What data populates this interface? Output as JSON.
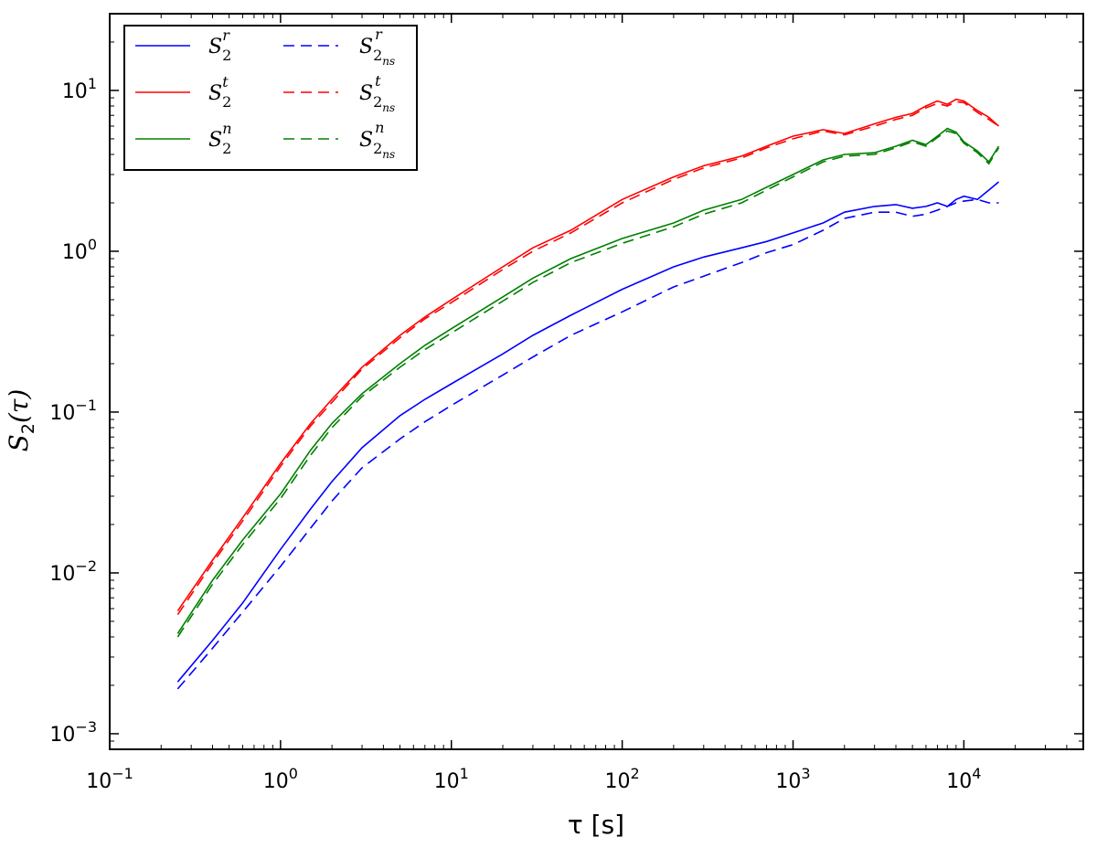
{
  "chart_data": {
    "type": "line",
    "xlabel": "τ [s]",
    "ylabel": "S2(τ)",
    "xscale": "log",
    "yscale": "log",
    "xlim": [
      0.1,
      50000
    ],
    "ylim": [
      0.0008,
      30
    ],
    "grid": false,
    "legend_placement": "top-left",
    "x_ticks": [
      {
        "value": 0.1,
        "base": "10",
        "exp": "−1"
      },
      {
        "value": 1,
        "base": "10",
        "exp": "0"
      },
      {
        "value": 10,
        "base": "10",
        "exp": "1"
      },
      {
        "value": 100,
        "base": "10",
        "exp": "2"
      },
      {
        "value": 1000,
        "base": "10",
        "exp": "3"
      },
      {
        "value": 10000,
        "base": "10",
        "exp": "4"
      }
    ],
    "y_ticks": [
      {
        "value": 0.001,
        "base": "10",
        "exp": "−3"
      },
      {
        "value": 0.01,
        "base": "10",
        "exp": "−2"
      },
      {
        "value": 0.1,
        "base": "10",
        "exp": "−1"
      },
      {
        "value": 1,
        "base": "10",
        "exp": "0"
      },
      {
        "value": 10,
        "base": "10",
        "exp": "1"
      }
    ],
    "x": [
      0.25,
      0.4,
      0.6,
      1,
      1.5,
      2,
      3,
      5,
      7,
      10,
      20,
      30,
      50,
      100,
      200,
      300,
      500,
      700,
      1000,
      1500,
      2000,
      3000,
      4000,
      5000,
      6000,
      7000,
      8000,
      9000,
      10000,
      12000,
      14000,
      16000
    ],
    "series": [
      {
        "name": "S2r",
        "sym": "S",
        "sub": "2",
        "sup": "r",
        "color": "#0000ff",
        "dash": false,
        "values": [
          0.0021,
          0.0038,
          0.0065,
          0.014,
          0.025,
          0.037,
          0.06,
          0.095,
          0.12,
          0.15,
          0.23,
          0.3,
          0.4,
          0.58,
          0.8,
          0.92,
          1.05,
          1.15,
          1.3,
          1.5,
          1.75,
          1.9,
          1.95,
          1.85,
          1.9,
          2.0,
          1.9,
          2.1,
          2.2,
          2.1,
          2.4,
          2.7
        ]
      },
      {
        "name": "S2t",
        "sym": "S",
        "sub": "2",
        "sup": "t",
        "color": "#ff0000",
        "dash": false,
        "values": [
          0.0058,
          0.012,
          0.022,
          0.048,
          0.085,
          0.12,
          0.19,
          0.3,
          0.39,
          0.5,
          0.8,
          1.05,
          1.35,
          2.1,
          2.9,
          3.4,
          3.9,
          4.5,
          5.2,
          5.7,
          5.4,
          6.2,
          6.8,
          7.2,
          8.0,
          8.6,
          8.2,
          8.8,
          8.6,
          7.5,
          6.8,
          6.0
        ]
      },
      {
        "name": "S2n",
        "sym": "S",
        "sub": "2",
        "sup": "n",
        "color": "#008000",
        "dash": false,
        "values": [
          0.0042,
          0.009,
          0.016,
          0.031,
          0.058,
          0.085,
          0.13,
          0.2,
          0.26,
          0.33,
          0.52,
          0.68,
          0.9,
          1.2,
          1.5,
          1.8,
          2.1,
          2.5,
          3.0,
          3.7,
          4.0,
          4.1,
          4.5,
          4.9,
          4.6,
          5.2,
          5.8,
          5.5,
          4.8,
          4.2,
          3.6,
          4.5
        ]
      },
      {
        "name": "S2ns r",
        "sym": "S",
        "sub": "2",
        "subsub": "ns",
        "sup": "r",
        "color": "#0000ff",
        "dash": true,
        "values": [
          0.0019,
          0.0034,
          0.0057,
          0.011,
          0.019,
          0.028,
          0.045,
          0.068,
          0.087,
          0.11,
          0.17,
          0.22,
          0.3,
          0.42,
          0.6,
          0.7,
          0.85,
          0.98,
          1.1,
          1.35,
          1.6,
          1.75,
          1.75,
          1.65,
          1.7,
          1.8,
          1.9,
          2.0,
          2.05,
          2.1,
          2.0,
          2.0
        ]
      },
      {
        "name": "S2ns t",
        "sym": "S",
        "sub": "2",
        "subsub": "ns",
        "sup": "t",
        "color": "#ff0000",
        "dash": true,
        "values": [
          0.0055,
          0.0115,
          0.021,
          0.046,
          0.082,
          0.115,
          0.185,
          0.29,
          0.38,
          0.48,
          0.77,
          1.0,
          1.3,
          2.0,
          2.8,
          3.3,
          3.8,
          4.4,
          5.0,
          5.6,
          5.3,
          6.0,
          6.6,
          7.0,
          7.8,
          8.3,
          8.0,
          8.5,
          8.4,
          7.3,
          6.6,
          6.0
        ]
      },
      {
        "name": "S2ns n",
        "sym": "S",
        "sub": "2",
        "subsub": "ns",
        "sup": "n",
        "color": "#008000",
        "dash": true,
        "values": [
          0.004,
          0.0085,
          0.015,
          0.029,
          0.054,
          0.08,
          0.125,
          0.19,
          0.245,
          0.31,
          0.49,
          0.64,
          0.85,
          1.12,
          1.42,
          1.7,
          2.0,
          2.4,
          2.9,
          3.6,
          3.9,
          4.0,
          4.4,
          4.8,
          4.5,
          5.1,
          5.6,
          5.4,
          4.7,
          4.1,
          3.5,
          4.4
        ]
      }
    ]
  }
}
